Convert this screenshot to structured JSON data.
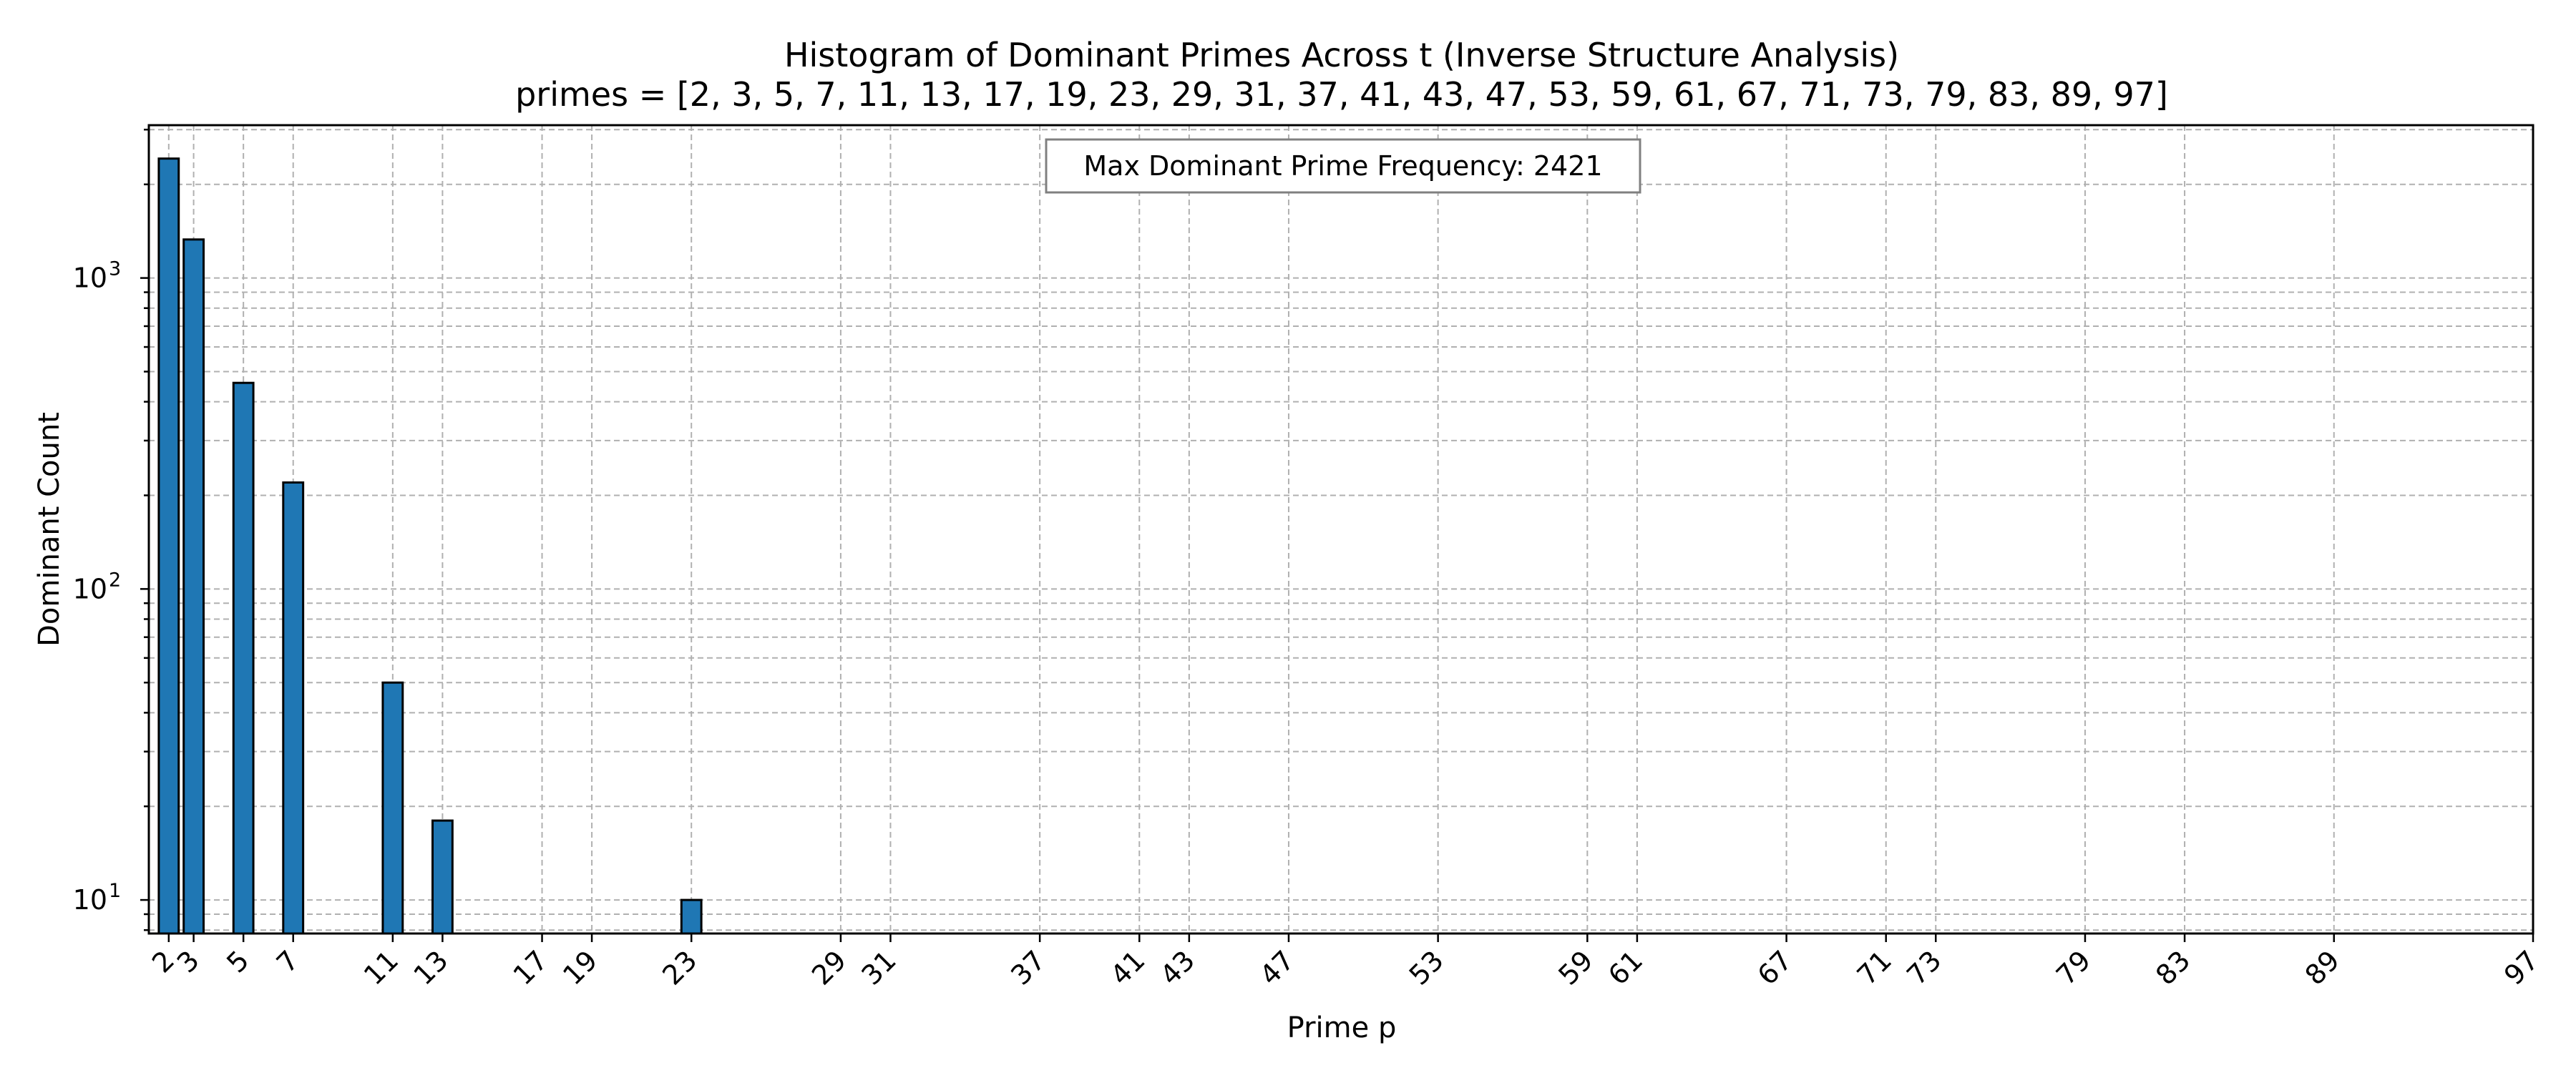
{
  "chart_data": {
    "type": "bar",
    "title": "Histogram of Dominant Primes Across t (Inverse Structure Analysis)",
    "subtitle": "primes = [2, 3, 5, 7, 11, 13, 17, 19, 23, 29, 31, 37, 41, 43, 47, 53, 59, 61, 67, 71, 73, 79, 83, 89, 97]",
    "xlabel": "Prime p",
    "ylabel": "Dominant Count",
    "yscale": "log",
    "ylim": [
      7.8,
      3100
    ],
    "xlim": [
      1.2,
      97
    ],
    "grid": true,
    "grid_which": "both",
    "x_ticks": [
      2,
      3,
      5,
      7,
      11,
      13,
      17,
      19,
      23,
      29,
      31,
      37,
      41,
      43,
      47,
      53,
      59,
      61,
      67,
      71,
      73,
      79,
      83,
      89,
      97
    ],
    "y_major_ticks": [
      10,
      100,
      1000
    ],
    "y_major_tick_labels": [
      "10",
      "10",
      "10"
    ],
    "y_major_tick_exponents": [
      "1",
      "2",
      "3"
    ],
    "bar_color": "#1f77b4",
    "bar_edge_color": "#000000",
    "bar_width": 0.8,
    "x": [
      2,
      3,
      5,
      7,
      11,
      13,
      23
    ],
    "values": [
      2421,
      1330,
      460,
      220,
      50,
      18,
      10
    ],
    "annotation": "Max Dominant Prime Frequency: 2421",
    "annotation_position": "top-center"
  }
}
